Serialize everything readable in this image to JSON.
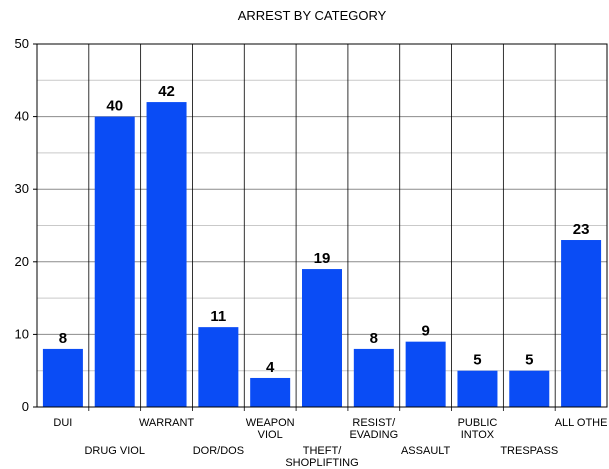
{
  "chart_data": {
    "type": "bar",
    "title": "ARREST BY CATEGORY",
    "xlabel": "",
    "ylabel": "",
    "ylim": [
      0,
      50
    ],
    "yticks": [
      0,
      10,
      20,
      30,
      40,
      50
    ],
    "grid": true,
    "bar_color": "#0a4cf5",
    "categories": [
      [
        "DUI"
      ],
      [
        "DRUG VIOL"
      ],
      [
        "WARRANT"
      ],
      [
        "DOR/DOS"
      ],
      [
        "WEAPON",
        "VIOL"
      ],
      [
        "THEFT/",
        "SHOPLIFTING"
      ],
      [
        "RESIST/",
        "EVADING"
      ],
      [
        "ASSAULT"
      ],
      [
        "PUBLIC",
        "INTOX"
      ],
      [
        "TRESPASS"
      ],
      [
        "ALL OTHE"
      ]
    ],
    "values": [
      8,
      40,
      42,
      11,
      4,
      19,
      8,
      9,
      5,
      5,
      23
    ],
    "data_labels": [
      "8",
      "40",
      "42",
      "11",
      "4",
      "19",
      "8",
      "9",
      "5",
      "5",
      "23"
    ]
  }
}
